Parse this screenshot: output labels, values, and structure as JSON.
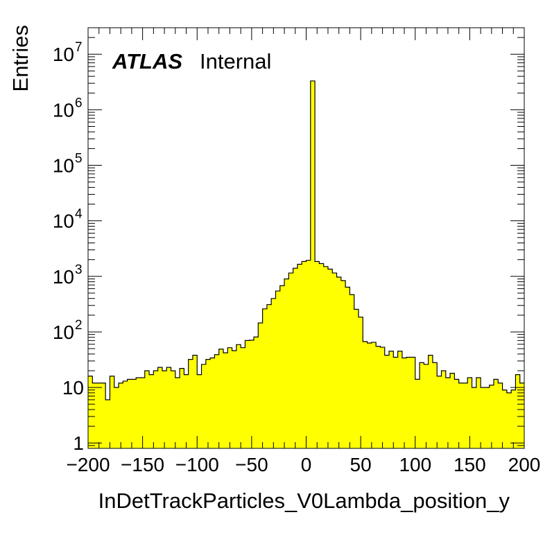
{
  "chart_data": {
    "type": "bar",
    "ylabel": "Entries",
    "xlabel": "InDetTrackParticles_V0Lambda_position_y",
    "label_bold": "ATLAS",
    "label_normal": "Internal",
    "xlim": [
      -200,
      200
    ],
    "ylim": [
      0.8,
      30000000
    ],
    "yscale": "log",
    "x_ticks": [
      "−200",
      "−150",
      "−100",
      "−50",
      "0",
      "50",
      "100",
      "150",
      "200"
    ],
    "x_tick_values": [
      -200,
      -150,
      -100,
      -50,
      0,
      50,
      100,
      150,
      200
    ],
    "y_ticks": [
      {
        "value": 1,
        "base": "1",
        "exp": ""
      },
      {
        "value": 10,
        "base": "10",
        "exp": ""
      },
      {
        "value": 100,
        "base": "10",
        "exp": "2"
      },
      {
        "value": 1000,
        "base": "10",
        "exp": "3"
      },
      {
        "value": 10000,
        "base": "10",
        "exp": "4"
      },
      {
        "value": 100000,
        "base": "10",
        "exp": "5"
      },
      {
        "value": 1000000,
        "base": "10",
        "exp": "6"
      },
      {
        "value": 10000000,
        "base": "10",
        "exp": "7"
      }
    ],
    "fill_color": "#ffff00",
    "line_color": "#000000",
    "bin_width": 4,
    "bin_low_edges": [
      -200,
      -196,
      -192,
      -188,
      -184,
      -180,
      -176,
      -172,
      -168,
      -164,
      -160,
      -156,
      -152,
      -148,
      -144,
      -140,
      -136,
      -132,
      -128,
      -124,
      -120,
      -116,
      -112,
      -108,
      -104,
      -100,
      -96,
      -92,
      -88,
      -84,
      -80,
      -76,
      -72,
      -68,
      -64,
      -60,
      -56,
      -52,
      -48,
      -44,
      -40,
      -36,
      -32,
      -28,
      -24,
      -20,
      -16,
      -12,
      -8,
      -4,
      0,
      4,
      8,
      12,
      16,
      20,
      24,
      28,
      32,
      36,
      40,
      44,
      48,
      52,
      56,
      60,
      64,
      68,
      72,
      76,
      80,
      84,
      88,
      92,
      96,
      100,
      104,
      108,
      112,
      116,
      120,
      124,
      128,
      132,
      136,
      140,
      144,
      148,
      152,
      156,
      160,
      164,
      168,
      172,
      176,
      180,
      184,
      188,
      192,
      196
    ],
    "values": [
      16,
      12,
      12,
      12,
      6,
      16,
      10,
      12,
      13,
      14,
      14,
      15,
      15,
      20,
      17,
      20,
      23,
      20,
      23,
      20,
      15,
      22,
      17,
      32,
      38,
      17,
      26,
      32,
      34,
      39,
      49,
      42,
      52,
      46,
      59,
      52,
      70,
      71,
      81,
      145,
      260,
      310,
      400,
      545,
      680,
      900,
      1150,
      1400,
      1650,
      1850,
      1950,
      3300000,
      1850,
      1700,
      1500,
      1350,
      1150,
      970,
      840,
      640,
      470,
      255,
      185,
      67,
      63,
      65,
      55,
      53,
      38,
      45,
      35,
      45,
      34,
      35,
      35,
      14,
      28,
      26,
      38,
      28,
      16,
      20,
      15,
      18,
      14,
      12,
      12,
      15,
      10,
      15,
      10,
      10,
      11,
      14,
      12,
      9,
      8,
      9,
      17,
      12
    ]
  }
}
